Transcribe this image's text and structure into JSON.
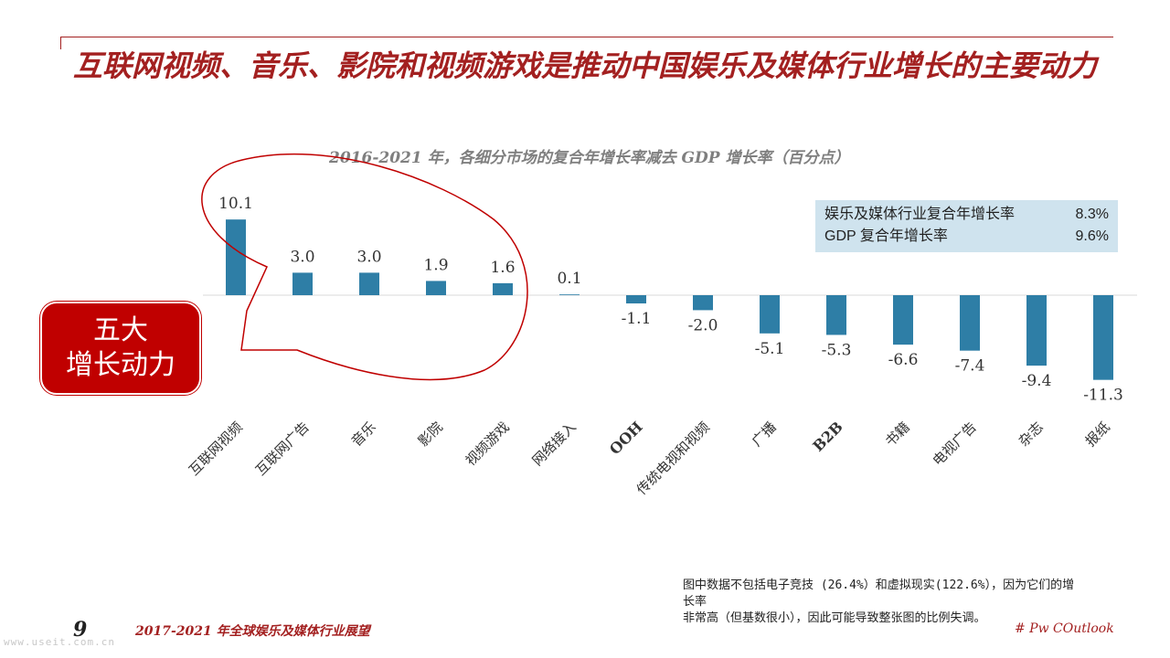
{
  "slide": {
    "title": "互联网视频、音乐、影院和视频游戏是推动中国娱乐及媒体行业增长的主要动力",
    "page_number": "9",
    "footer_title": "2017-2021 年全球娱乐及媒体行业展望",
    "brand": "# Pw COutlook",
    "watermark": "www.useit.com.cn",
    "badge_line1": "五大",
    "badge_line2": "增长动力",
    "note_line1": "图中数据不包括电子竞技 (26.4%）和虚拟现实(122.6%），因为它们的增",
    "note_line2": "长率",
    "note_line3": "非常高（但基数很小），因此可能导致整张图的比例失调。"
  },
  "infobox": {
    "row1_label": "娱乐及媒体行业复合年增长率",
    "row1_value": "8.3%",
    "row2_label": "GDP 复合年增长率",
    "row2_value": "9.6%"
  },
  "colors": {
    "accent": "#a32020",
    "bar": "#2e7ea6",
    "badge": "#c00000",
    "infobox": "#cfe3ee"
  },
  "chart_data": {
    "type": "bar",
    "title": "2016-2021 年，各细分市场的复合年增长率减去 GDP 增长率（百分点）",
    "categories": [
      "互联网视频",
      "互联网广告",
      "音乐",
      "影院",
      "视频游戏",
      "网络接入",
      "OOH",
      "传统电视和视频",
      "广播",
      "B2B",
      "书籍",
      "电视广告",
      "杂志",
      "报纸"
    ],
    "values": [
      10.1,
      3.0,
      3.0,
      1.9,
      1.6,
      0.1,
      -1.1,
      -2.0,
      -5.1,
      -5.3,
      -6.6,
      -7.4,
      -9.4,
      -11.3
    ],
    "value_labels": [
      "10.1",
      "3.0",
      "3.0",
      "1.9",
      "1.6",
      "0.1",
      "-1.1",
      "-2.0",
      "-5.1",
      "-5.3",
      "-6.6",
      "-7.4",
      "-9.4",
      "-11.3"
    ],
    "ylim": [
      -11.3,
      10.1
    ],
    "grid": false,
    "highlight": "互联网视频 / 互联网广告 / 音乐 / 影院 / 视频游戏 circled"
  }
}
